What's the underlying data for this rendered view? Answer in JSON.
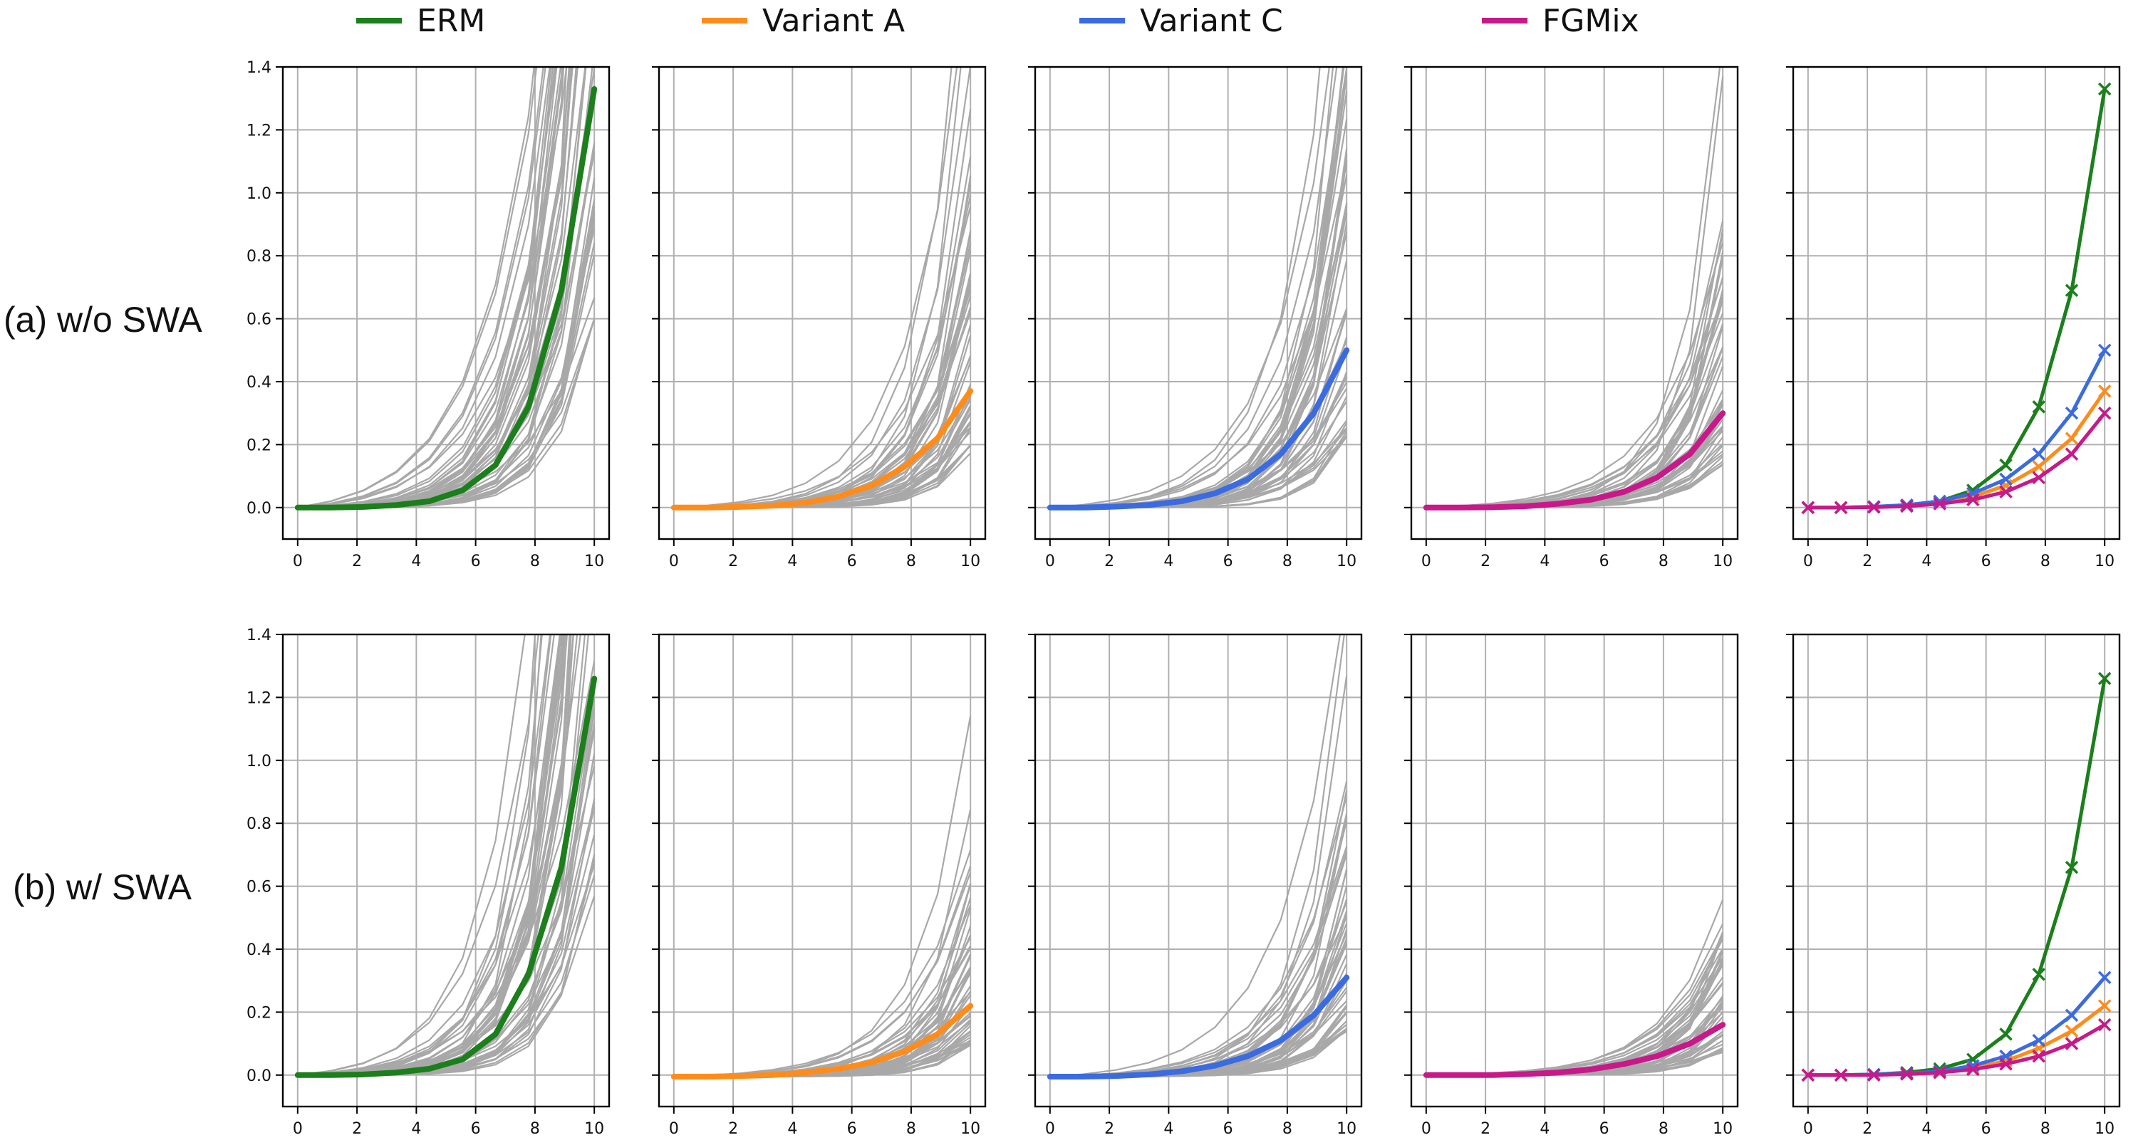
{
  "legend": [
    {
      "name": "ERM",
      "color": "#1b7f1b"
    },
    {
      "name": "Variant A",
      "color": "#ff8c1a"
    },
    {
      "name": "Variant C",
      "color": "#3b6be0"
    },
    {
      "name": "FGMix",
      "color": "#c8188a"
    }
  ],
  "rows": [
    {
      "label": "(a) w/o SWA"
    },
    {
      "label": "(b) w/ SWA"
    }
  ],
  "chart_data": [
    {
      "type": "line",
      "panel": "a-1",
      "title": "",
      "xlabel": "",
      "ylabel": "",
      "xlim": [
        -0.5,
        10.5
      ],
      "ylim": [
        -0.1,
        1.4
      ],
      "x_ticks": [
        0,
        2,
        4,
        6,
        8,
        10
      ],
      "y_ticks": [
        0.0,
        0.2,
        0.4,
        0.6,
        0.8,
        1.0,
        1.2,
        1.4
      ],
      "x": [
        0,
        1.11,
        2.22,
        3.33,
        4.44,
        5.56,
        6.67,
        7.78,
        8.89,
        10
      ],
      "series": [
        {
          "name": "ERM",
          "values": [
            0.0,
            0.0,
            0.002,
            0.008,
            0.02,
            0.055,
            0.135,
            0.32,
            0.69,
            1.33
          ]
        }
      ],
      "background_curves": "gray per-instance curves"
    },
    {
      "type": "line",
      "panel": "a-2",
      "xlim": [
        -0.5,
        10.5
      ],
      "ylim": [
        -0.1,
        1.4
      ],
      "x_ticks": [
        0,
        2,
        4,
        6,
        8,
        10
      ],
      "x": [
        0,
        1.11,
        2.22,
        3.33,
        4.44,
        5.56,
        6.67,
        7.78,
        8.89,
        10
      ],
      "series": [
        {
          "name": "Variant A",
          "values": [
            0.0,
            0.0,
            0.002,
            0.006,
            0.015,
            0.035,
            0.07,
            0.13,
            0.22,
            0.37
          ]
        }
      ]
    },
    {
      "type": "line",
      "panel": "a-3",
      "xlim": [
        -0.5,
        10.5
      ],
      "ylim": [
        -0.1,
        1.4
      ],
      "x_ticks": [
        0,
        2,
        4,
        6,
        8,
        10
      ],
      "x": [
        0,
        1.11,
        2.22,
        3.33,
        4.44,
        5.56,
        6.67,
        7.78,
        8.89,
        10
      ],
      "series": [
        {
          "name": "Variant C",
          "values": [
            0.0,
            0.0,
            0.003,
            0.008,
            0.02,
            0.045,
            0.09,
            0.17,
            0.3,
            0.5
          ]
        }
      ]
    },
    {
      "type": "line",
      "panel": "a-4",
      "xlim": [
        -0.5,
        10.5
      ],
      "ylim": [
        -0.1,
        1.4
      ],
      "x_ticks": [
        0,
        2,
        4,
        6,
        8,
        10
      ],
      "x": [
        0,
        1.11,
        2.22,
        3.33,
        4.44,
        5.56,
        6.67,
        7.78,
        8.89,
        10
      ],
      "series": [
        {
          "name": "FGMix",
          "values": [
            0.0,
            0.0,
            0.001,
            0.004,
            0.012,
            0.025,
            0.05,
            0.095,
            0.17,
            0.3
          ]
        }
      ]
    },
    {
      "type": "line",
      "panel": "a-5",
      "xlim": [
        -0.5,
        10.5
      ],
      "ylim": [
        -0.1,
        1.4
      ],
      "x_ticks": [
        0,
        2,
        4,
        6,
        8,
        10
      ],
      "x": [
        0,
        1.11,
        2.22,
        3.33,
        4.44,
        5.56,
        6.67,
        7.78,
        8.89,
        10
      ],
      "markers": "x",
      "series": [
        {
          "name": "ERM",
          "values": [
            0.0,
            0.0,
            0.002,
            0.008,
            0.02,
            0.055,
            0.135,
            0.32,
            0.69,
            1.33
          ]
        },
        {
          "name": "Variant A",
          "values": [
            0.0,
            0.0,
            0.002,
            0.006,
            0.015,
            0.035,
            0.07,
            0.13,
            0.22,
            0.37
          ]
        },
        {
          "name": "Variant C",
          "values": [
            0.0,
            0.0,
            0.003,
            0.008,
            0.02,
            0.045,
            0.09,
            0.17,
            0.3,
            0.5
          ]
        },
        {
          "name": "FGMix",
          "values": [
            0.0,
            0.0,
            0.001,
            0.004,
            0.012,
            0.025,
            0.05,
            0.095,
            0.17,
            0.3
          ]
        }
      ]
    },
    {
      "type": "line",
      "panel": "b-1",
      "xlim": [
        -0.5,
        10.5
      ],
      "ylim": [
        -0.1,
        1.4
      ],
      "x_ticks": [
        0,
        2,
        4,
        6,
        8,
        10
      ],
      "y_ticks": [
        0.0,
        0.2,
        0.4,
        0.6,
        0.8,
        1.0,
        1.2,
        1.4
      ],
      "x": [
        0,
        1.11,
        2.22,
        3.33,
        4.44,
        5.56,
        6.67,
        7.78,
        8.89,
        10
      ],
      "series": [
        {
          "name": "ERM",
          "values": [
            0.0,
            0.0,
            0.002,
            0.008,
            0.02,
            0.05,
            0.13,
            0.32,
            0.66,
            1.26
          ]
        }
      ]
    },
    {
      "type": "line",
      "panel": "b-2",
      "xlim": [
        -0.5,
        10.5
      ],
      "ylim": [
        -0.1,
        1.4
      ],
      "x_ticks": [
        0,
        2,
        4,
        6,
        8,
        10
      ],
      "x": [
        0,
        1.11,
        2.22,
        3.33,
        4.44,
        5.56,
        6.67,
        7.78,
        8.89,
        10
      ],
      "series": [
        {
          "name": "Variant A",
          "values": [
            -0.005,
            -0.005,
            -0.003,
            0.0,
            0.008,
            0.02,
            0.04,
            0.075,
            0.13,
            0.22
          ]
        }
      ]
    },
    {
      "type": "line",
      "panel": "b-3",
      "xlim": [
        -0.5,
        10.5
      ],
      "ylim": [
        -0.1,
        1.4
      ],
      "x_ticks": [
        0,
        2,
        4,
        6,
        8,
        10
      ],
      "x": [
        0,
        1.11,
        2.22,
        3.33,
        4.44,
        5.56,
        6.67,
        7.78,
        8.89,
        10
      ],
      "series": [
        {
          "name": "Variant C",
          "values": [
            -0.005,
            -0.005,
            -0.003,
            0.002,
            0.012,
            0.03,
            0.06,
            0.11,
            0.19,
            0.31
          ]
        }
      ]
    },
    {
      "type": "line",
      "panel": "b-4",
      "xlim": [
        -0.5,
        10.5
      ],
      "ylim": [
        -0.1,
        1.4
      ],
      "x_ticks": [
        0,
        2,
        4,
        6,
        8,
        10
      ],
      "x": [
        0,
        1.11,
        2.22,
        3.33,
        4.44,
        5.56,
        6.67,
        7.78,
        8.89,
        10
      ],
      "series": [
        {
          "name": "FGMix",
          "values": [
            0.0,
            0.0,
            0.0,
            0.003,
            0.008,
            0.018,
            0.035,
            0.06,
            0.1,
            0.16
          ]
        }
      ]
    },
    {
      "type": "line",
      "panel": "b-5",
      "xlim": [
        -0.5,
        10.5
      ],
      "ylim": [
        -0.1,
        1.4
      ],
      "x_ticks": [
        0,
        2,
        4,
        6,
        8,
        10
      ],
      "x": [
        0,
        1.11,
        2.22,
        3.33,
        4.44,
        5.56,
        6.67,
        7.78,
        8.89,
        10
      ],
      "markers": "x",
      "series": [
        {
          "name": "ERM",
          "values": [
            0.0,
            0.0,
            0.002,
            0.008,
            0.02,
            0.05,
            0.13,
            0.32,
            0.66,
            1.26
          ]
        },
        {
          "name": "Variant A",
          "values": [
            0.0,
            0.0,
            0.001,
            0.004,
            0.01,
            0.022,
            0.045,
            0.085,
            0.14,
            0.22
          ]
        },
        {
          "name": "Variant C",
          "values": [
            0.0,
            0.0,
            0.002,
            0.005,
            0.012,
            0.03,
            0.06,
            0.11,
            0.19,
            0.31
          ]
        },
        {
          "name": "FGMix",
          "values": [
            0.0,
            0.0,
            0.0,
            0.003,
            0.008,
            0.018,
            0.035,
            0.06,
            0.1,
            0.16
          ]
        }
      ]
    }
  ]
}
